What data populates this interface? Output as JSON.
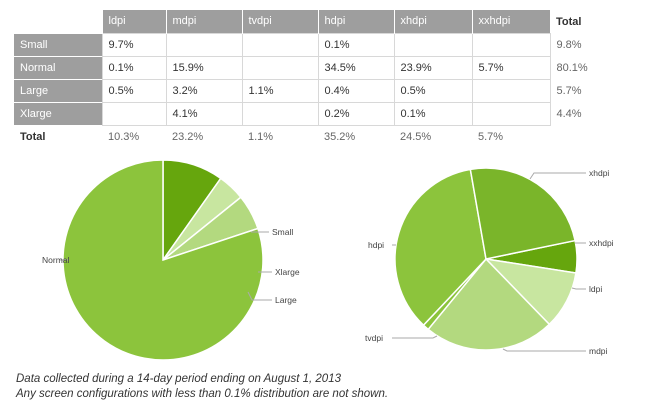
{
  "table": {
    "columns": [
      "ldpi",
      "mdpi",
      "tvdpi",
      "hdpi",
      "xhdpi",
      "xxhdpi"
    ],
    "total_label": "Total",
    "rows": [
      {
        "label": "Small",
        "cells": [
          "9.7%",
          "",
          "",
          "0.1%",
          "",
          ""
        ],
        "total": "9.8%"
      },
      {
        "label": "Normal",
        "cells": [
          "0.1%",
          "15.9%",
          "",
          "34.5%",
          "23.9%",
          "5.7%"
        ],
        "total": "80.1%"
      },
      {
        "label": "Large",
        "cells": [
          "0.5%",
          "3.2%",
          "1.1%",
          "0.4%",
          "0.5%",
          ""
        ],
        "total": "5.7%"
      },
      {
        "label": "Xlarge",
        "cells": [
          "",
          "4.1%",
          "",
          "0.2%",
          "0.1%",
          ""
        ],
        "total": "4.4%"
      }
    ],
    "sum_row": {
      "label": "Total",
      "cells": [
        "10.3%",
        "23.2%",
        "1.1%",
        "35.2%",
        "24.5%",
        "5.7%"
      ]
    }
  },
  "chart_data": [
    {
      "type": "pie",
      "title": "",
      "slices": [
        {
          "label": "Small",
          "value": 9.8
        },
        {
          "label": "Xlarge",
          "value": 4.4
        },
        {
          "label": "Large",
          "value": 5.7
        },
        {
          "label": "Normal",
          "value": 80.1
        }
      ],
      "colors": [
        "#66a60d",
        "#c8e6a0",
        "#b3d97f",
        "#8cc43c"
      ],
      "start_angle_deg": 90
    },
    {
      "type": "pie",
      "title": "",
      "slices": [
        {
          "label": "xxhdpi",
          "value": 5.7
        },
        {
          "label": "ldpi",
          "value": 10.3
        },
        {
          "label": "mdpi",
          "value": 23.2
        },
        {
          "label": "tvdpi",
          "value": 1.1
        },
        {
          "label": "hdpi",
          "value": 35.2
        },
        {
          "label": "xhdpi",
          "value": 24.5
        }
      ],
      "colors": [
        "#66a60d",
        "#c8e6a0",
        "#b3d97f",
        "#8cc43c",
        "#8cc43c",
        "#7ab52a"
      ],
      "start_angle_deg": 11.7
    }
  ],
  "footnotes": [
    "Data collected during a 14-day period ending on August 1, 2013",
    "Any screen configurations with less than 0.1% distribution are not shown."
  ]
}
